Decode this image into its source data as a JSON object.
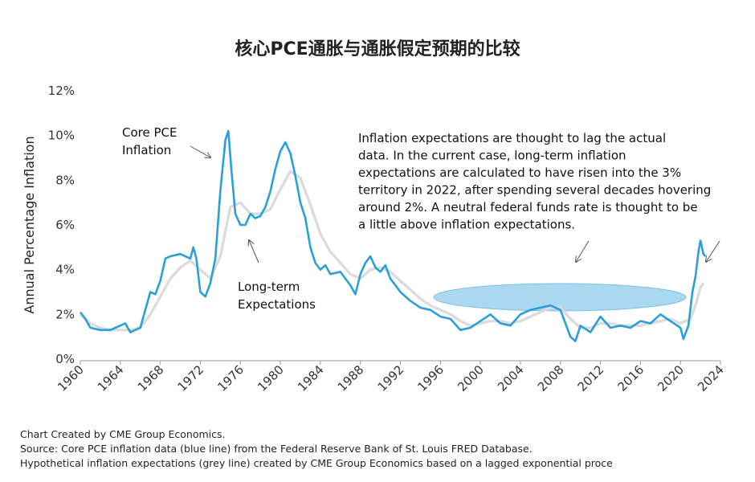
{
  "chart_data": {
    "type": "line",
    "title": "核心PCE通胀与通胀假定预期的比较",
    "ylabel": "Annual Percentage Inflation",
    "xlim": [
      1960,
      2024
    ],
    "xticks": [
      1960,
      1964,
      1968,
      1972,
      1976,
      1980,
      1984,
      1988,
      1992,
      1996,
      2000,
      2004,
      2008,
      2012,
      2016,
      2020,
      2024
    ],
    "ylim": [
      0,
      12
    ],
    "yticks": [
      {
        "value": 0,
        "label": "0%"
      },
      {
        "value": 2,
        "label": "2%"
      },
      {
        "value": 4,
        "label": "4%"
      },
      {
        "value": 6,
        "label": "6%"
      },
      {
        "value": 8,
        "label": "8%"
      },
      {
        "value": 10,
        "label": "10%"
      },
      {
        "value": 12,
        "label": "12%"
      }
    ],
    "grid": false,
    "series": [
      {
        "color": "#dcdcdc",
        "x": [
          1960,
          1961,
          1962,
          1963,
          1964,
          1965,
          1966,
          1967,
          1968,
          1969,
          1970,
          1971,
          1972,
          1973,
          1974,
          1975,
          1976,
          1977,
          1978,
          1979,
          1980,
          1981,
          1982,
          1983,
          1984,
          1985,
          1986,
          1987,
          1988,
          1989,
          1990,
          1991,
          1992,
          1993,
          1994,
          1995,
          1996,
          1997,
          1998,
          1999,
          2000,
          2001,
          2002,
          2003,
          2004,
          2005,
          2006,
          2007,
          2008,
          2009,
          2010,
          2011,
          2012,
          2013,
          2014,
          2015,
          2016,
          2017,
          2018,
          2019,
          2020,
          2021,
          2021.5,
          2022,
          2022.3
        ],
        "values": [
          2.0,
          1.6,
          1.4,
          1.3,
          1.3,
          1.3,
          1.4,
          2.0,
          2.8,
          3.6,
          4.1,
          4.4,
          4.0,
          3.6,
          4.6,
          6.8,
          7.0,
          6.5,
          6.5,
          6.7,
          7.6,
          8.4,
          8.1,
          6.9,
          5.6,
          4.8,
          4.3,
          3.8,
          3.6,
          4.0,
          4.1,
          3.9,
          3.5,
          3.1,
          2.7,
          2.4,
          2.2,
          2.0,
          1.7,
          1.5,
          1.6,
          1.7,
          1.7,
          1.6,
          1.7,
          1.9,
          2.1,
          2.3,
          2.3,
          1.8,
          1.4,
          1.4,
          1.6,
          1.6,
          1.5,
          1.5,
          1.5,
          1.6,
          1.7,
          1.8,
          1.6,
          1.8,
          2.4,
          3.2,
          3.4
        ]
      },
      {
        "color": "#2a9fd8",
        "x": [
          1960,
          1960.5,
          1961,
          1962,
          1963,
          1964,
          1964.5,
          1965,
          1966,
          1966.5,
          1967,
          1967.5,
          1968,
          1968.5,
          1969,
          1970,
          1971,
          1971.3,
          1971.6,
          1972,
          1972.5,
          1973,
          1973.5,
          1974,
          1974.5,
          1974.8,
          1975.1,
          1975.5,
          1976,
          1976.5,
          1977,
          1977.5,
          1978,
          1978.5,
          1979,
          1979.5,
          1980,
          1980.5,
          1981,
          1981.5,
          1982,
          1982.5,
          1983,
          1983.5,
          1984,
          1984.5,
          1985,
          1986,
          1987,
          1987.5,
          1988,
          1988.5,
          1989,
          1989.5,
          1990,
          1990.5,
          1991,
          1991.5,
          1992,
          1993,
          1994,
          1995,
          1996,
          1997,
          1998,
          1999,
          2000,
          2001,
          2002,
          2003,
          2004,
          2005,
          2006,
          2007,
          2008,
          2009,
          2009.5,
          2010,
          2011,
          2012,
          2013,
          2014,
          2015,
          2016,
          2017,
          2018,
          2019,
          2020,
          2020.3,
          2020.8,
          2021.2,
          2021.5,
          2021.8,
          2022,
          2022.3,
          2022.5
        ],
        "values": [
          2.1,
          1.8,
          1.4,
          1.3,
          1.3,
          1.5,
          1.6,
          1.2,
          1.4,
          2.2,
          3.0,
          2.9,
          3.5,
          4.5,
          4.6,
          4.7,
          4.5,
          5.0,
          4.5,
          3.0,
          2.8,
          3.4,
          4.5,
          7.5,
          9.8,
          10.2,
          8.5,
          6.5,
          6.0,
          6.0,
          6.5,
          6.3,
          6.4,
          6.8,
          7.5,
          8.5,
          9.3,
          9.7,
          9.2,
          8.2,
          7.0,
          6.3,
          5.0,
          4.3,
          4.0,
          4.2,
          3.8,
          3.9,
          3.3,
          2.9,
          3.8,
          4.3,
          4.6,
          4.1,
          3.9,
          4.2,
          3.6,
          3.3,
          3.0,
          2.6,
          2.3,
          2.2,
          1.9,
          1.8,
          1.3,
          1.4,
          1.7,
          2.0,
          1.6,
          1.5,
          2.0,
          2.2,
          2.3,
          2.4,
          2.2,
          1.0,
          0.8,
          1.5,
          1.2,
          1.9,
          1.4,
          1.5,
          1.4,
          1.7,
          1.6,
          2.0,
          1.7,
          1.4,
          0.9,
          1.5,
          3.0,
          3.7,
          4.8,
          5.3,
          4.7,
          4.6
        ]
      }
    ],
    "annotations": [
      [
        "Core PCE",
        "Inflation"
      ],
      [
        "Long-term",
        "Expectations"
      ],
      [
        "Inflation expectations are thought to lag the actual",
        "data. In the current case, long-term inflation",
        "expectations are calculated to have risen into the 3%",
        "territory in 2022, after spending several decades hovering",
        "around 2%. A neutral federal funds rate is thought to be",
        "a little above inflation expectations."
      ]
    ],
    "footer": [
      "Chart Created by CME Group Economics.",
      "Source:  Core PCE inflation data (blue line) from the Federal Reserve Bank of St. Louis FRED Database.",
      "Hypothetical inflation expectations (grey line) created by CME Group Economics based on a lagged exponential proce"
    ]
  }
}
